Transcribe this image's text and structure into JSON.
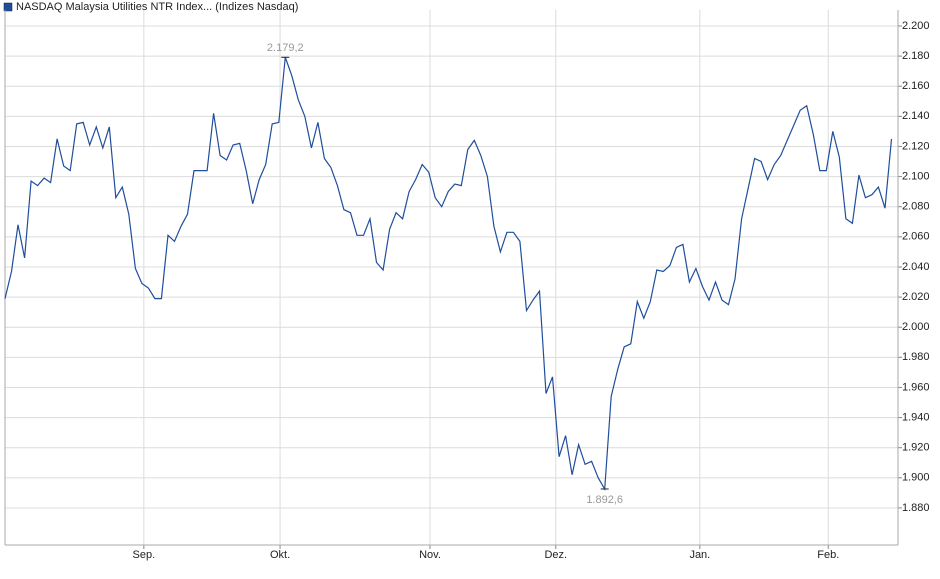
{
  "chart_data": {
    "type": "line",
    "title": "NASDAQ Malaysia Utilities NTR Index... (Indizes Nasdaq)",
    "color": "#1f4e9c",
    "values": [
      2019,
      2037,
      2068,
      2046,
      2097,
      2094,
      2099,
      2096,
      2125,
      2107,
      2104,
      2135,
      2136,
      2121,
      2133,
      2119,
      2133,
      2086,
      2093,
      2075,
      2039,
      2029,
      2026,
      2019,
      2019,
      2061,
      2057,
      2067,
      2075,
      2104,
      2104,
      2104,
      2142,
      2114,
      2111,
      2121,
      2122,
      2104,
      2082,
      2098,
      2108,
      2135,
      2136,
      2179.2,
      2167,
      2151,
      2140,
      2119,
      2136,
      2112,
      2106,
      2094,
      2078,
      2076,
      2061,
      2061,
      2072,
      2043,
      2038,
      2065,
      2076,
      2072,
      2090,
      2098,
      2108,
      2103,
      2086,
      2080,
      2090,
      2095,
      2094,
      2118,
      2124,
      2114,
      2100,
      2067,
      2050,
      2063,
      2063,
      2057,
      2011,
      2018,
      2024,
      1956,
      1967,
      1914,
      1928,
      1902,
      1922,
      1909,
      1911,
      1900,
      1892.6,
      1954,
      1972,
      1987,
      1989,
      2017,
      2006,
      2017,
      2038,
      2037,
      2041,
      2053,
      2055,
      2030,
      2039,
      2027,
      2018,
      2030,
      2018,
      2015,
      2032,
      2072,
      2092,
      2112,
      2110,
      2098,
      2108,
      2114,
      2124,
      2134,
      2144,
      2147,
      2128,
      2104,
      2104,
      2130,
      2113,
      2072,
      2069,
      2101,
      2086,
      2088,
      2093,
      2079,
      2125
    ],
    "xlim": [
      0,
      137
    ],
    "xticks": [
      {
        "value": 21.3,
        "label": "Sep."
      },
      {
        "value": 42.2,
        "label": "Okt."
      },
      {
        "value": 65.2,
        "label": "Nov."
      },
      {
        "value": 84.5,
        "label": "Dez."
      },
      {
        "value": 106.6,
        "label": "Jan."
      },
      {
        "value": 126.3,
        "label": "Feb."
      }
    ],
    "ylim": [
      1855.4,
      2210.6
    ],
    "yticks": [
      {
        "value": 1880,
        "label": "1.880"
      },
      {
        "value": 1900,
        "label": "1.900"
      },
      {
        "value": 1920,
        "label": "1.920"
      },
      {
        "value": 1940,
        "label": "1.940"
      },
      {
        "value": 1960,
        "label": "1.960"
      },
      {
        "value": 1980,
        "label": "1.980"
      },
      {
        "value": 2000,
        "label": "2.000"
      },
      {
        "value": 2020,
        "label": "2.020"
      },
      {
        "value": 2040,
        "label": "2.040"
      },
      {
        "value": 2060,
        "label": "2.060"
      },
      {
        "value": 2080,
        "label": "2.080"
      },
      {
        "value": 2100,
        "label": "2.100"
      },
      {
        "value": 2120,
        "label": "2.120"
      },
      {
        "value": 2140,
        "label": "2.140"
      },
      {
        "value": 2160,
        "label": "2.160"
      },
      {
        "value": 2180,
        "label": "2.180"
      },
      {
        "value": 2200,
        "label": "2.200"
      }
    ],
    "annotations": [
      {
        "x": 43,
        "text": "2.179,2"
      },
      {
        "x": 92,
        "text": "1.892,6"
      }
    ],
    "grid": true
  }
}
